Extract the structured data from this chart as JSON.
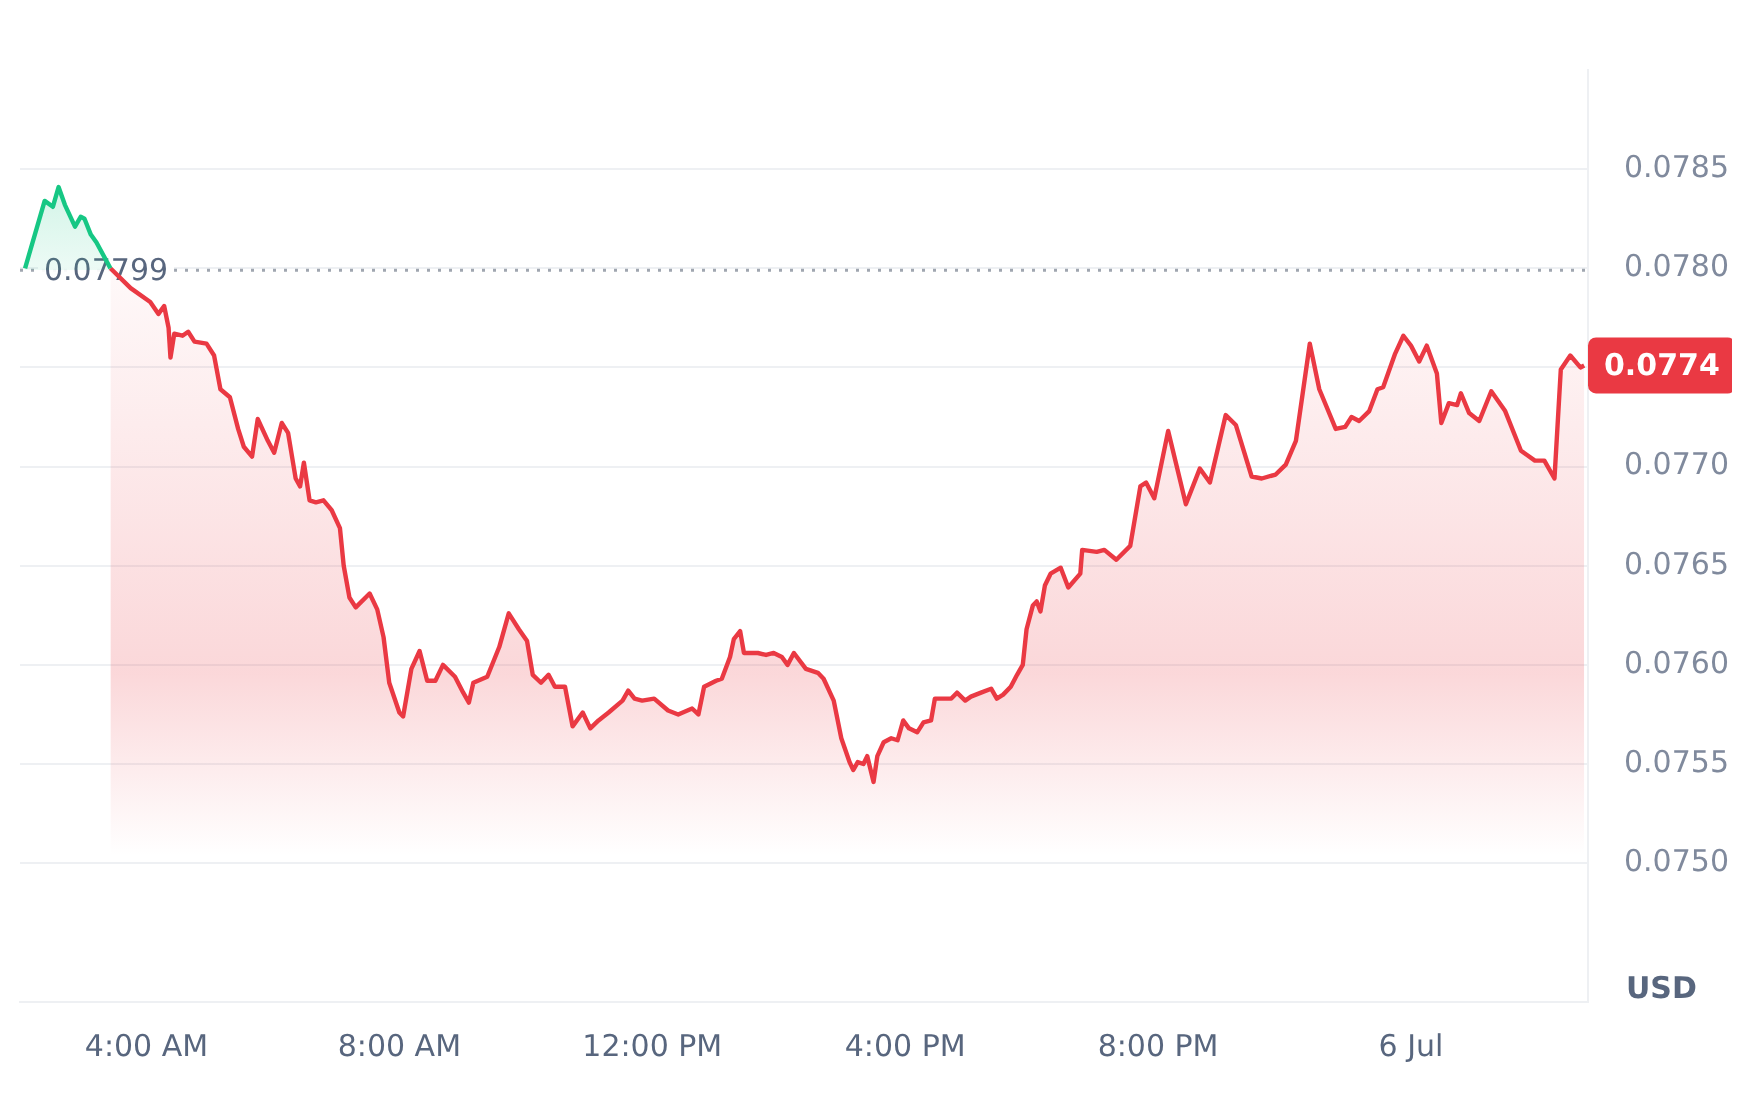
{
  "chart_data": {
    "type": "area",
    "ylabel": "USD",
    "xlim": [
      2.0,
      26.8
    ],
    "xticks": [
      {
        "value": 4,
        "label": "4:00 AM"
      },
      {
        "value": 8,
        "label": "8:00 AM"
      },
      {
        "value": 12,
        "label": "12:00 PM"
      },
      {
        "value": 16,
        "label": "4:00 PM"
      },
      {
        "value": 20,
        "label": "8:00 PM"
      },
      {
        "value": 24,
        "label": "6 Jul"
      }
    ],
    "ylim": [
      0.0743,
      0.079
    ],
    "yticks": [
      {
        "value": 0.075,
        "label": "0.0750"
      },
      0.0755,
      {
        "value": 0.076,
        "label": "0.0760"
      },
      0.0765,
      {
        "value": 0.077,
        "label": "0.0770"
      },
      {
        "value": 0.0775,
        "label": null
      },
      {
        "value": 0.078,
        "label": "0.0780"
      },
      0.0785
    ],
    "grid": "y",
    "legend": false,
    "marker": "none",
    "line_style": "solid",
    "ref_lines": [
      {
        "axis": "y",
        "value": 0.07799,
        "label": "0.07799",
        "color": "#a0a6b0",
        "line_style": "dotted"
      }
    ],
    "annotations": [
      "0.0774"
    ],
    "series": [
      {
        "color": "#16c784",
        "x": [
          2.08,
          2.39,
          2.52,
          2.61,
          2.71,
          2.87,
          2.96,
          3.02,
          3.12,
          3.21,
          3.43
        ],
        "values": [
          0.078,
          0.07834,
          0.07831,
          0.07841,
          0.07832,
          0.07821,
          0.07826,
          0.07825,
          0.07817,
          0.07813,
          0.078
        ]
      },
      {
        "color": "#ea3943",
        "x": [
          3.43,
          3.75,
          4.06,
          4.19,
          4.28,
          4.35,
          4.38,
          4.44,
          4.57,
          4.66,
          4.76,
          4.95,
          5.07,
          5.17,
          5.32,
          5.45,
          5.54,
          5.67,
          5.76,
          5.92,
          6.02,
          6.14,
          6.24,
          6.36,
          6.43,
          6.49,
          6.58,
          6.68,
          6.8,
          6.93,
          7.06,
          7.12,
          7.21,
          7.31,
          7.53,
          7.65,
          7.75,
          7.84,
          8.0,
          8.06,
          8.19,
          8.32,
          8.44,
          8.57,
          8.69,
          8.88,
          9.01,
          9.1,
          9.17,
          9.39,
          9.58,
          9.73,
          9.89,
          10.02,
          10.11,
          10.24,
          10.36,
          10.46,
          10.62,
          10.74,
          10.9,
          11.02,
          11.15,
          11.31,
          11.53,
          11.62,
          11.72,
          11.84,
          12.03,
          12.25,
          12.41,
          12.63,
          12.73,
          12.82,
          13.01,
          13.1,
          13.23,
          13.29,
          13.39,
          13.45,
          13.67,
          13.8,
          13.92,
          14.05,
          14.14,
          14.24,
          14.43,
          14.62,
          14.71,
          14.87,
          14.99,
          15.12,
          15.18,
          15.25,
          15.34,
          15.4,
          15.5,
          15.56,
          15.66,
          15.78,
          15.88,
          15.97,
          16.06,
          16.19,
          16.29,
          16.41,
          16.47,
          16.6,
          16.73,
          16.82,
          16.95,
          17.04,
          17.2,
          17.36,
          17.45,
          17.55,
          17.67,
          17.77,
          17.86,
          17.92,
          18.02,
          18.08,
          18.14,
          18.21,
          18.3,
          18.46,
          18.58,
          18.77,
          18.8,
          19.03,
          19.15,
          19.34,
          19.56,
          19.72,
          19.81,
          19.94,
          20.16,
          20.44,
          20.66,
          20.82,
          21.07,
          21.23,
          21.48,
          21.64,
          21.86,
          22.02,
          22.18,
          22.4,
          22.55,
          22.81,
          22.96,
          23.06,
          23.18,
          23.34,
          23.47,
          23.56,
          23.75,
          23.88,
          24.0,
          24.13,
          24.25,
          24.41,
          24.48,
          24.6,
          24.73,
          24.79,
          24.92,
          25.08,
          25.27,
          25.49,
          25.74,
          25.96,
          26.11,
          26.27,
          26.37,
          26.52,
          26.68,
          26.74
        ],
        "values": [
          0.078,
          0.0779,
          0.07783,
          0.07777,
          0.07781,
          0.0777,
          0.07755,
          0.07767,
          0.07766,
          0.07768,
          0.07763,
          0.07762,
          0.07756,
          0.07739,
          0.07735,
          0.07719,
          0.0771,
          0.07705,
          0.07724,
          0.07713,
          0.07707,
          0.07722,
          0.07717,
          0.07694,
          0.0769,
          0.07702,
          0.07683,
          0.07682,
          0.07683,
          0.07678,
          0.07669,
          0.0765,
          0.07634,
          0.07629,
          0.07636,
          0.07628,
          0.07614,
          0.07591,
          0.07576,
          0.07574,
          0.07598,
          0.07607,
          0.07592,
          0.07592,
          0.076,
          0.07594,
          0.07586,
          0.07581,
          0.07591,
          0.07594,
          0.07609,
          0.07626,
          0.07618,
          0.07612,
          0.07595,
          0.07591,
          0.07595,
          0.07589,
          0.07589,
          0.07569,
          0.07576,
          0.07568,
          0.07572,
          0.07576,
          0.07582,
          0.07587,
          0.07583,
          0.07582,
          0.07583,
          0.07577,
          0.07575,
          0.07578,
          0.07575,
          0.07589,
          0.07592,
          0.07593,
          0.07604,
          0.07613,
          0.07617,
          0.07606,
          0.07606,
          0.07605,
          0.07606,
          0.07604,
          0.076,
          0.07606,
          0.07598,
          0.07596,
          0.07593,
          0.07582,
          0.07563,
          0.07551,
          0.07547,
          0.07551,
          0.0755,
          0.07554,
          0.07541,
          0.07554,
          0.07561,
          0.07563,
          0.07562,
          0.07572,
          0.07568,
          0.07566,
          0.07571,
          0.07572,
          0.07583,
          0.07583,
          0.07583,
          0.07586,
          0.07582,
          0.07584,
          0.07586,
          0.07588,
          0.07583,
          0.07585,
          0.07589,
          0.07595,
          0.076,
          0.07618,
          0.0763,
          0.07632,
          0.07627,
          0.0764,
          0.07646,
          0.07649,
          0.07639,
          0.07646,
          0.07658,
          0.07657,
          0.07658,
          0.07653,
          0.0766,
          0.0769,
          0.07692,
          0.07684,
          0.07718,
          0.07681,
          0.07699,
          0.07692,
          0.07726,
          0.07721,
          0.07695,
          0.07694,
          0.07696,
          0.07701,
          0.07713,
          0.07762,
          0.07739,
          0.07719,
          0.0772,
          0.07725,
          0.07723,
          0.07728,
          0.07739,
          0.0774,
          0.07757,
          0.07766,
          0.07761,
          0.07753,
          0.07761,
          0.07747,
          0.07722,
          0.07732,
          0.07731,
          0.07737,
          0.07727,
          0.07723,
          0.07738,
          0.07728,
          0.07708,
          0.07703,
          0.07703,
          0.07694,
          0.07749,
          0.07756,
          0.0775,
          0.07751
        ]
      }
    ]
  }
}
